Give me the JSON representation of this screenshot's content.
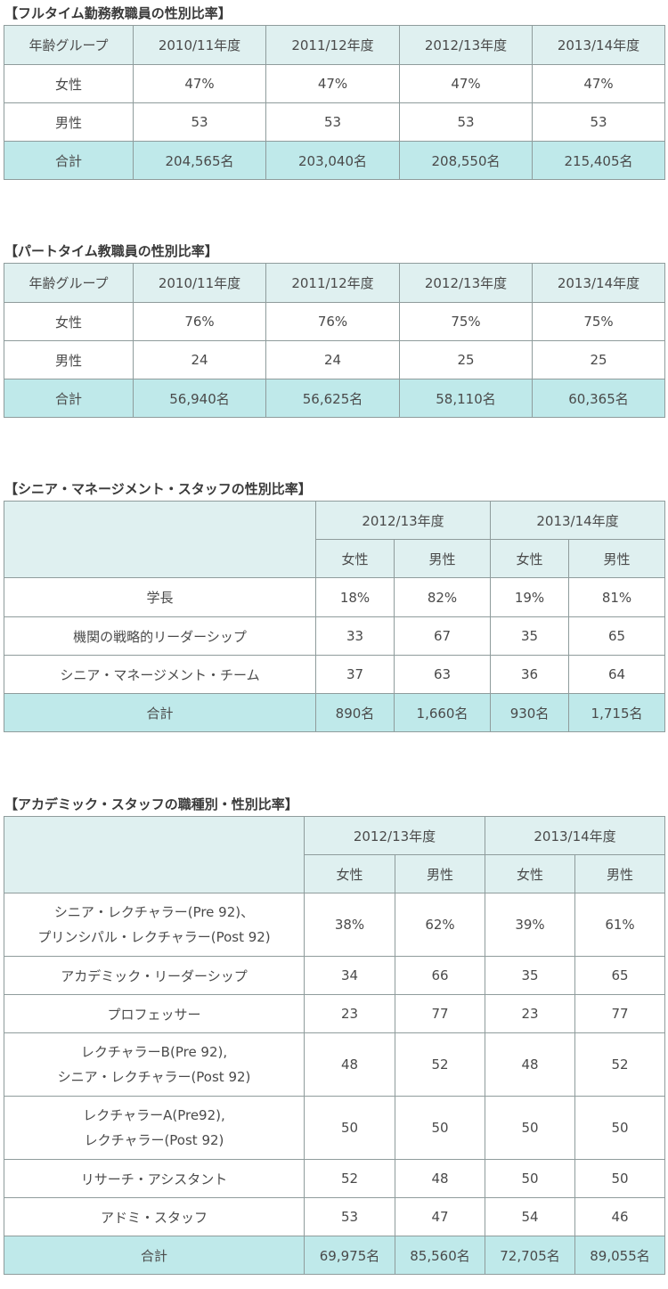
{
  "t1": {
    "title": "【フルタイム勤務教職員の性別比率】",
    "header": [
      "年齢グループ",
      "2010/11年度",
      "2011/12年度",
      "2012/13年度",
      "2013/14年度"
    ],
    "rows": [
      [
        "女性",
        "47%",
        "47%",
        "47%",
        "47%"
      ],
      [
        "男性",
        "53",
        "53",
        "53",
        "53"
      ]
    ],
    "total": [
      "合計",
      "204,565名",
      "203,040名",
      "208,550名",
      "215,405名"
    ]
  },
  "t2": {
    "title": "【パートタイム教職員の性別比率】",
    "header": [
      "年齢グループ",
      "2010/11年度",
      "2011/12年度",
      "2012/13年度",
      "2013/14年度"
    ],
    "rows": [
      [
        "女性",
        "76%",
        "76%",
        "75%",
        "75%"
      ],
      [
        "男性",
        "24",
        "24",
        "25",
        "25"
      ]
    ],
    "total": [
      "合計",
      "56,940名",
      "56,625名",
      "58,110名",
      "60,365名"
    ]
  },
  "t3": {
    "title": "【シニア・マネージメント・スタッフの性別比率】",
    "years": [
      "2012/13年度",
      "2013/14年度"
    ],
    "sub": [
      "女性",
      "男性",
      "女性",
      "男性"
    ],
    "rows": [
      [
        "学長",
        "18%",
        "82%",
        "19%",
        "81%"
      ],
      [
        "機関の戦略的リーダーシップ",
        "33",
        "67",
        "35",
        "65"
      ],
      [
        "シニア・マネージメント・チーム",
        "37",
        "63",
        "36",
        "64"
      ]
    ],
    "total": [
      "合計",
      "890名",
      "1,660名",
      "930名",
      "1,715名"
    ]
  },
  "t4": {
    "title": "【アカデミック・スタッフの職種別・性別比率】",
    "years": [
      "2012/13年度",
      "2013/14年度"
    ],
    "sub": [
      "女性",
      "男性",
      "女性",
      "男性"
    ],
    "rows": [
      [
        "シニア・レクチャラー(Pre 92)、",
        "プリンシパル・レクチャラー(Post 92)",
        "38%",
        "62%",
        "39%",
        "61%"
      ],
      [
        "アカデミック・リーダーシップ",
        "",
        "34",
        "66",
        "35",
        "65"
      ],
      [
        "プロフェッサー",
        "",
        "23",
        "77",
        "23",
        "77"
      ],
      [
        "レクチャラーB(Pre 92),",
        "シニア・レクチャラー(Post 92)",
        "48",
        "52",
        "48",
        "52"
      ],
      [
        "レクチャラーA(Pre92),",
        "レクチャラー(Post 92)",
        "50",
        "50",
        "50",
        "50"
      ],
      [
        "リサーチ・アシスタント",
        "",
        "52",
        "48",
        "50",
        "50"
      ],
      [
        "アドミ・スタッフ",
        "",
        "53",
        "47",
        "54",
        "46"
      ]
    ],
    "total": [
      "合計",
      "69,975名",
      "85,560名",
      "72,705名",
      "89,055名"
    ]
  }
}
